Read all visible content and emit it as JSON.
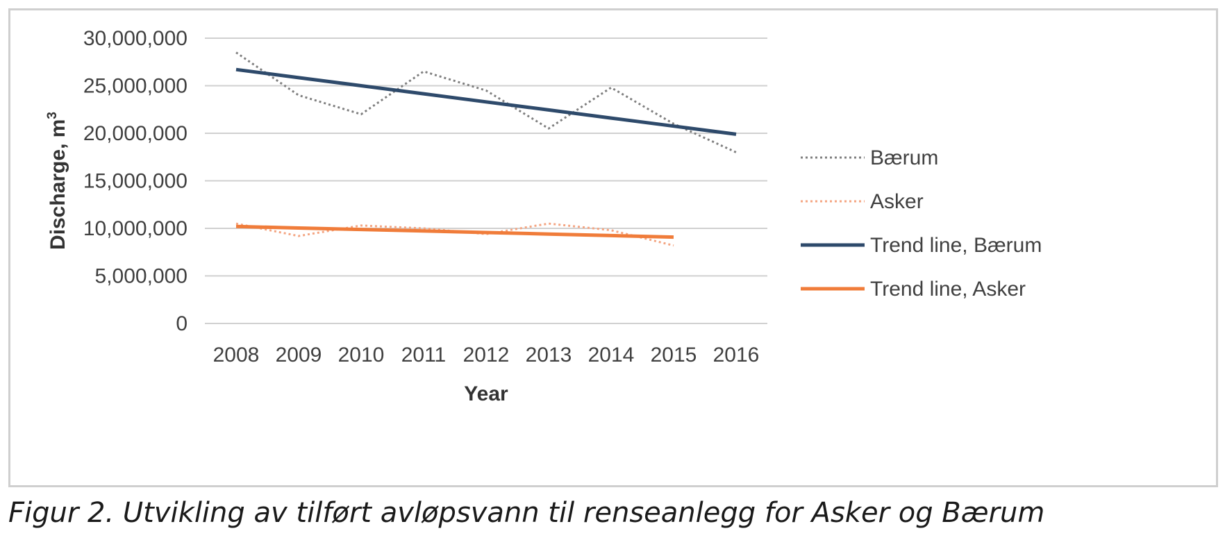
{
  "caption": "Figur 2. Utvikling av tilført avløpsvann til renseanlegg for Asker og Bærum",
  "chart_data": {
    "type": "line",
    "x": [
      2008,
      2009,
      2010,
      2011,
      2012,
      2013,
      2014,
      2015,
      2016
    ],
    "xlabel": "Year",
    "ylabel": "Discharge, m",
    "ylabel_superscript": "3",
    "ylim": [
      0,
      30000000
    ],
    "yticks": [
      0,
      5000000,
      10000000,
      15000000,
      20000000,
      25000000,
      30000000
    ],
    "ytick_labels": [
      "0",
      "5,000,000",
      "10,000,000",
      "15,000,000",
      "20,000,000",
      "25,000,000",
      "30,000,000"
    ],
    "grid": true,
    "legend_position": "right",
    "series": [
      {
        "name": "Bærum",
        "style": "dotted",
        "color": "#7f7f7f",
        "values": [
          28500000,
          24000000,
          22000000,
          26500000,
          24500000,
          20500000,
          24800000,
          21000000,
          18000000
        ]
      },
      {
        "name": "Asker",
        "style": "dotted",
        "color": "#f4a582",
        "values": [
          10500000,
          9200000,
          10300000,
          10000000,
          9400000,
          10500000,
          9800000,
          8200000,
          null
        ]
      },
      {
        "name": "Trend line, Bærum",
        "style": "solid",
        "color": "#2e4a6b",
        "values": [
          26700000,
          25850000,
          25000000,
          24150000,
          23300000,
          22450000,
          21600000,
          20750000,
          19900000
        ]
      },
      {
        "name": "Trend line, Asker",
        "style": "solid",
        "color": "#f07c3a",
        "values": [
          10200000,
          10040000,
          9880000,
          9720000,
          9560000,
          9400000,
          9240000,
          9080000,
          null
        ]
      }
    ]
  }
}
